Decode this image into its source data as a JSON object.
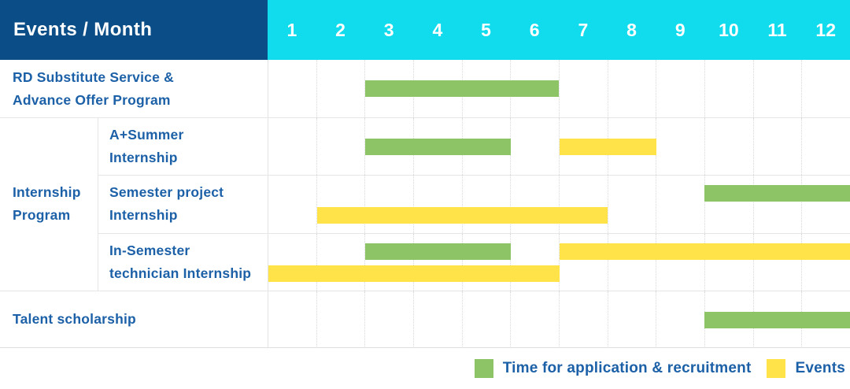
{
  "header": {
    "corner_label": "Events / Month",
    "months": [
      "1",
      "2",
      "3",
      "4",
      "5",
      "6",
      "7",
      "8",
      "9",
      "10",
      "11",
      "12"
    ]
  },
  "colors": {
    "navy": "#0b4d86",
    "cyan": "#10dcee",
    "green": "#8dc566",
    "yellow": "#ffe348",
    "label_blue": "#1c60a7"
  },
  "rows": [
    {
      "type": "simple",
      "label_lines": [
        "RD Substitute Service &",
        "Advance Offer Program"
      ],
      "bars": [
        {
          "color": "green",
          "start": 3,
          "end": 6,
          "line": "center"
        }
      ]
    },
    {
      "type": "group",
      "label_lines": [
        "Internship",
        "Program"
      ],
      "subrows": [
        {
          "label_lines": [
            "A+Summer",
            "Internship"
          ],
          "bars": [
            {
              "color": "green",
              "start": 3,
              "end": 5,
              "line": "center"
            },
            {
              "color": "yellow",
              "start": 7,
              "end": 8,
              "line": "center"
            }
          ]
        },
        {
          "label_lines": [
            "Semester project",
            "Internship"
          ],
          "bars": [
            {
              "color": "green",
              "start": 10,
              "end": 12,
              "line": "top"
            },
            {
              "color": "yellow",
              "start": 2,
              "end": 7,
              "line": "bottom"
            }
          ]
        },
        {
          "label_lines": [
            "In-Semester",
            "technician Internship"
          ],
          "bars": [
            {
              "color": "green",
              "start": 3,
              "end": 5,
              "line": "top"
            },
            {
              "color": "yellow",
              "start": 7,
              "end": 12,
              "line": "top"
            },
            {
              "color": "yellow",
              "start": 1,
              "end": 6,
              "line": "bottom"
            }
          ]
        }
      ]
    },
    {
      "type": "simple",
      "label_lines": [
        "Talent scholarship"
      ],
      "bars": [
        {
          "color": "green",
          "start": 10,
          "end": 12,
          "line": "center"
        }
      ]
    }
  ],
  "legend": {
    "items": [
      {
        "color": "green",
        "label": "Time for application & recruitment"
      },
      {
        "color": "yellow",
        "label": "Events"
      }
    ]
  },
  "chart_data": {
    "type": "bar",
    "variant": "gantt-schedule",
    "title": "Events / Month",
    "x_axis": {
      "label": "Month",
      "ticks": [
        1,
        2,
        3,
        4,
        5,
        6,
        7,
        8,
        9,
        10,
        11,
        12
      ]
    },
    "legend_entries": [
      "Time for application & recruitment",
      "Events"
    ],
    "legend_position": "bottom-right",
    "series": [
      {
        "task": "RD Substitute Service & Advance Offer Program",
        "group": null,
        "segments": [
          {
            "kind": "Time for application & recruitment",
            "start_month": 3,
            "end_month": 6
          }
        ]
      },
      {
        "task": "A+Summer Internship",
        "group": "Internship Program",
        "segments": [
          {
            "kind": "Time for application & recruitment",
            "start_month": 3,
            "end_month": 5
          },
          {
            "kind": "Events",
            "start_month": 7,
            "end_month": 8
          }
        ]
      },
      {
        "task": "Semester project Internship",
        "group": "Internship Program",
        "segments": [
          {
            "kind": "Time for application & recruitment",
            "start_month": 10,
            "end_month": 12
          },
          {
            "kind": "Events",
            "start_month": 2,
            "end_month": 7
          }
        ]
      },
      {
        "task": "In-Semester technician Internship",
        "group": "Internship Program",
        "segments": [
          {
            "kind": "Time for application & recruitment",
            "start_month": 3,
            "end_month": 5
          },
          {
            "kind": "Events",
            "start_month": 1,
            "end_month": 6
          },
          {
            "kind": "Events",
            "start_month": 7,
            "end_month": 12
          }
        ]
      },
      {
        "task": "Talent scholarship",
        "group": null,
        "segments": [
          {
            "kind": "Time for application & recruitment",
            "start_month": 10,
            "end_month": 12
          }
        ]
      }
    ]
  }
}
